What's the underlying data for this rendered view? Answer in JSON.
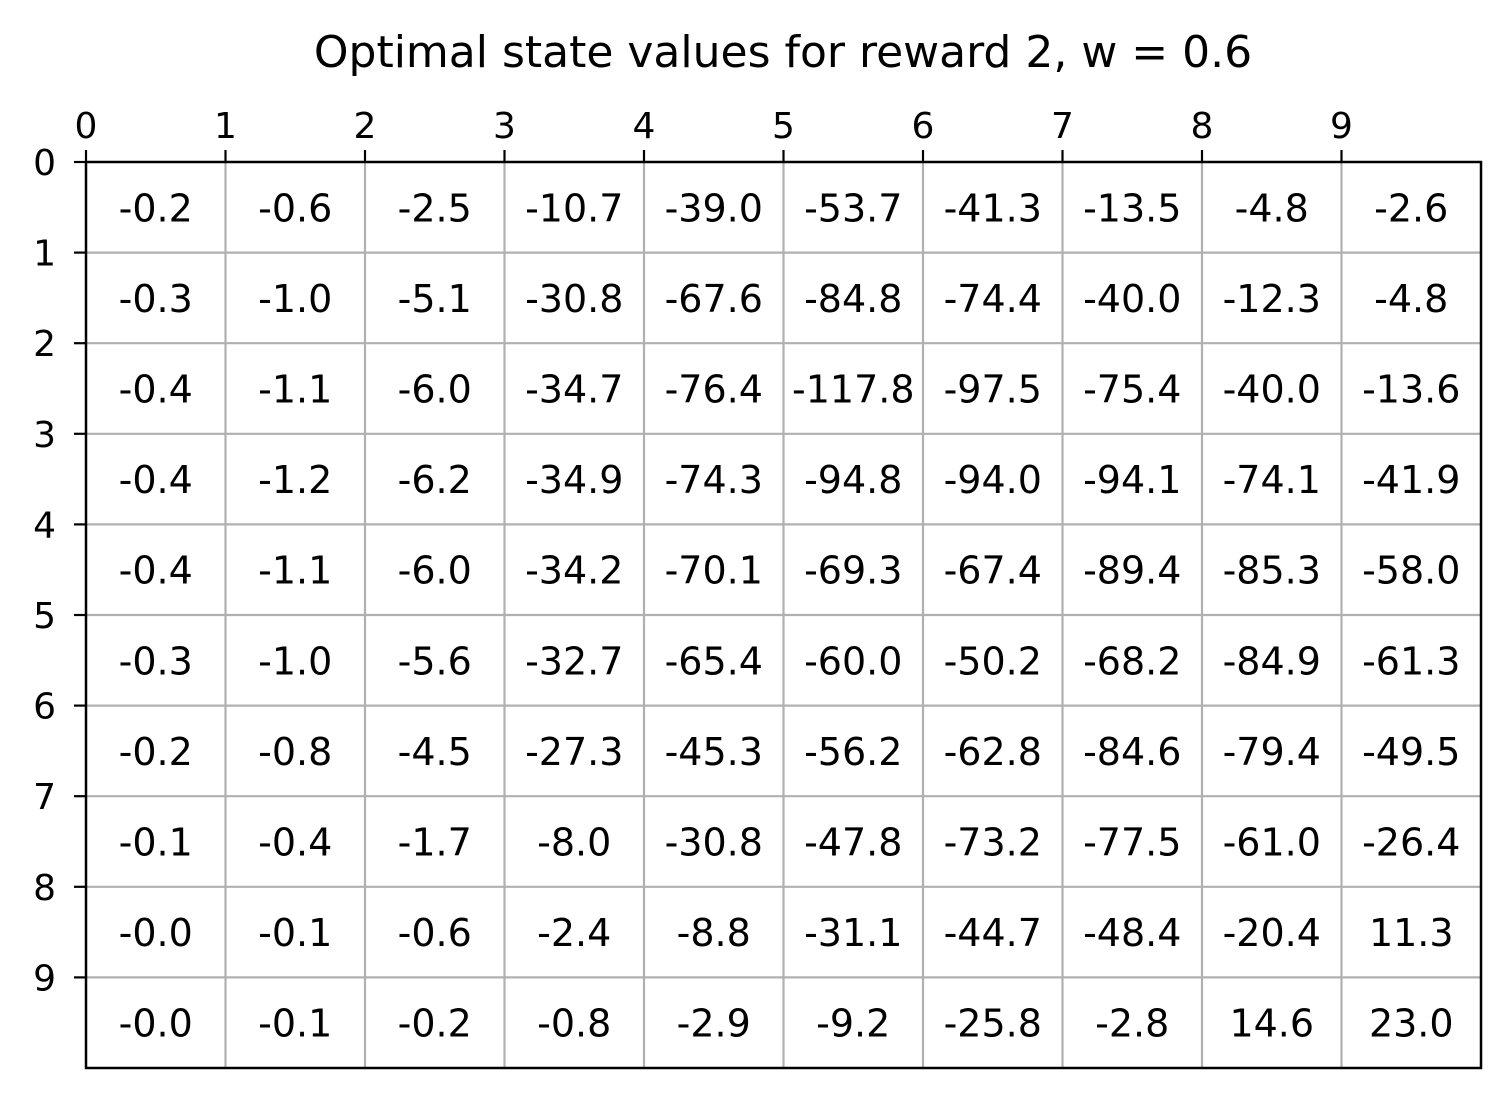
{
  "chart_data": {
    "type": "heatmap",
    "title": "Optimal state values for reward 2, w = 0.6",
    "xlabel": "",
    "ylabel": "",
    "x_ticks": [
      "0",
      "1",
      "2",
      "3",
      "4",
      "5",
      "6",
      "7",
      "8",
      "9"
    ],
    "y_ticks": [
      "0",
      "1",
      "2",
      "3",
      "4",
      "5",
      "6",
      "7",
      "8",
      "9"
    ],
    "x_axis_position": "top",
    "grid": true,
    "colors": {
      "grid": "#b0b0b0",
      "frame": "#000000",
      "text": "#000000"
    },
    "values": [
      [
        "-0.2",
        "-0.6",
        "-2.5",
        "-10.7",
        "-39.0",
        "-53.7",
        "-41.3",
        "-13.5",
        "-4.8",
        "-2.6"
      ],
      [
        "-0.3",
        "-1.0",
        "-5.1",
        "-30.8",
        "-67.6",
        "-84.8",
        "-74.4",
        "-40.0",
        "-12.3",
        "-4.8"
      ],
      [
        "-0.4",
        "-1.1",
        "-6.0",
        "-34.7",
        "-76.4",
        "-117.8",
        "-97.5",
        "-75.4",
        "-40.0",
        "-13.6"
      ],
      [
        "-0.4",
        "-1.2",
        "-6.2",
        "-34.9",
        "-74.3",
        "-94.8",
        "-94.0",
        "-94.1",
        "-74.1",
        "-41.9"
      ],
      [
        "-0.4",
        "-1.1",
        "-6.0",
        "-34.2",
        "-70.1",
        "-69.3",
        "-67.4",
        "-89.4",
        "-85.3",
        "-58.0"
      ],
      [
        "-0.3",
        "-1.0",
        "-5.6",
        "-32.7",
        "-65.4",
        "-60.0",
        "-50.2",
        "-68.2",
        "-84.9",
        "-61.3"
      ],
      [
        "-0.2",
        "-0.8",
        "-4.5",
        "-27.3",
        "-45.3",
        "-56.2",
        "-62.8",
        "-84.6",
        "-79.4",
        "-49.5"
      ],
      [
        "-0.1",
        "-0.4",
        "-1.7",
        "-8.0",
        "-30.8",
        "-47.8",
        "-73.2",
        "-77.5",
        "-61.0",
        "-26.4"
      ],
      [
        "-0.0",
        "-0.1",
        "-0.6",
        "-2.4",
        "-8.8",
        "-31.1",
        "-44.7",
        "-48.4",
        "-20.4",
        "11.3"
      ],
      [
        "-0.0",
        "-0.1",
        "-0.2",
        "-0.8",
        "-2.9",
        "-9.2",
        "-25.8",
        "-2.8",
        "14.6",
        "23.0"
      ]
    ]
  }
}
